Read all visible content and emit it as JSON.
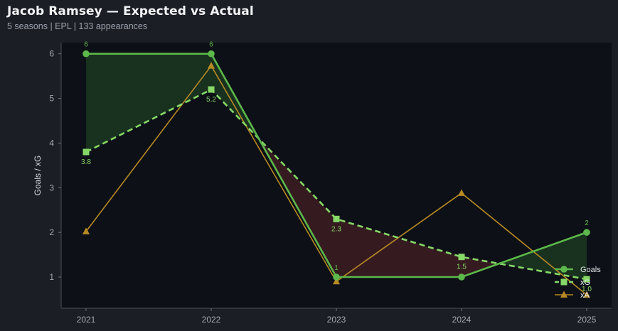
{
  "header": {
    "title": "Jacob Ramsey — Expected vs Actual",
    "subtitle": "5 seasons | EPL | 133 appearances"
  },
  "colors": {
    "background": "#1b1e25",
    "plot_bg": "#0d1016",
    "goals": "#5cb84a",
    "xg": "#86d867",
    "xa": "#b88a24",
    "fill_over": "#1b3520",
    "fill_under": "#3a1d21"
  },
  "chart_data": {
    "type": "line",
    "x": [
      "2021",
      "2022",
      "2023",
      "2024",
      "2025"
    ],
    "ylabel": "Goals / xG",
    "xlabel": "",
    "ylim": [
      0.3,
      6.25
    ],
    "yticks": [
      1,
      2,
      3,
      4,
      5,
      6
    ],
    "grid": false,
    "legend_position": "bottom-right",
    "series": [
      {
        "name": "Goals",
        "values": [
          6,
          6,
          1,
          1,
          2
        ],
        "labels": [
          "6",
          "6",
          "1",
          "",
          "2"
        ],
        "style": "solid",
        "marker": "circle"
      },
      {
        "name": "xG",
        "values": [
          3.8,
          5.2,
          2.3,
          1.45,
          0.95
        ],
        "labels": [
          "3.8",
          "5.2",
          "2.3",
          "1.5",
          "1.0"
        ],
        "style": "dashed",
        "marker": "square"
      },
      {
        "name": "xA",
        "values": [
          2.02,
          5.73,
          0.9,
          2.88,
          0.6
        ],
        "labels": [],
        "style": "solid",
        "marker": "triangle"
      }
    ]
  }
}
